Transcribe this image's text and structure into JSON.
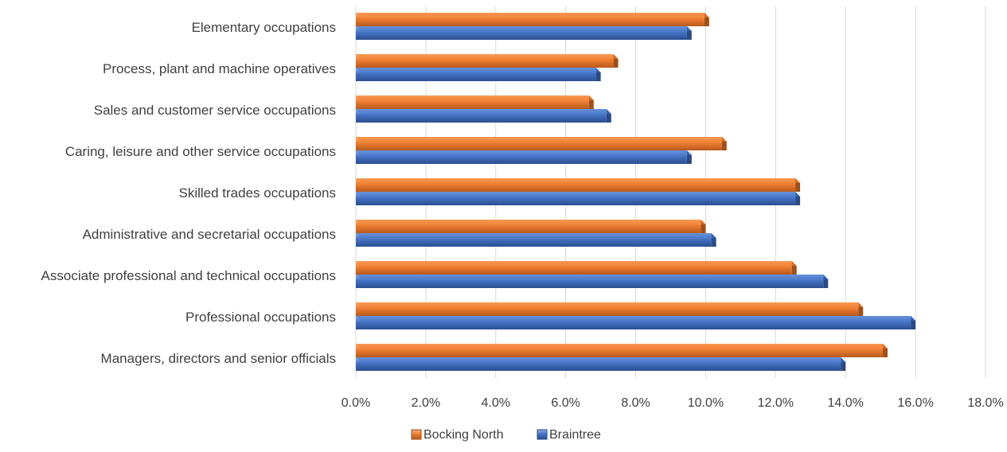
{
  "chart_data": {
    "type": "bar",
    "orientation": "horizontal",
    "categories": [
      "Elementary occupations",
      "Process, plant and machine operatives",
      "Sales and customer service occupations",
      "Caring, leisure and other service occupations",
      "Skilled trades occupations",
      "Administrative and secretarial occupations",
      "Associate professional and technical occupations",
      "Professional occupations",
      "Managers, directors and senior officials"
    ],
    "series": [
      {
        "name": "Bocking North",
        "color": "#ED7D31",
        "values": [
          10.1,
          7.5,
          6.8,
          10.6,
          12.7,
          10.0,
          12.6,
          14.5,
          15.2
        ]
      },
      {
        "name": "Braintree",
        "color": "#4472C4",
        "values": [
          9.6,
          7.0,
          7.3,
          9.6,
          12.7,
          10.3,
          13.5,
          16.0,
          14.0
        ]
      }
    ],
    "x_ticks": [
      "0.0%",
      "2.0%",
      "4.0%",
      "6.0%",
      "8.0%",
      "10.0%",
      "12.0%",
      "14.0%",
      "16.0%",
      "18.0%"
    ],
    "xlim": [
      0,
      18
    ],
    "grid": "vertical",
    "legend_position": "bottom"
  }
}
